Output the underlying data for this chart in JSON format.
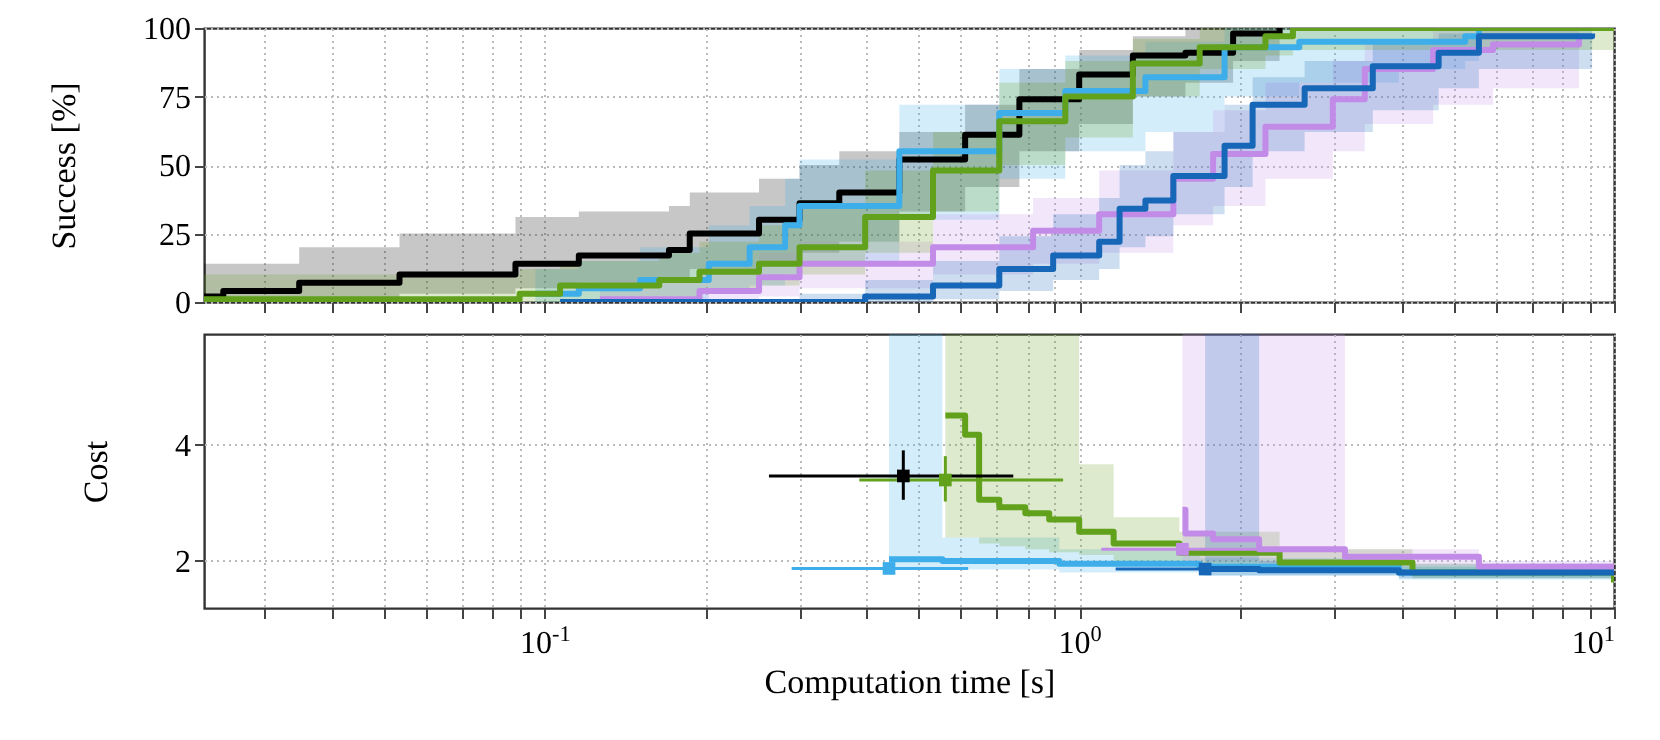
{
  "chart_data": [
    {
      "type": "step",
      "ylabel": "Success [%]",
      "xlim": [
        0.0231,
        10
      ],
      "ylim": [
        0,
        100
      ],
      "yticks": [
        0,
        25,
        50,
        75,
        100
      ],
      "log": "x",
      "grid": true,
      "tick_labels": "y",
      "xticks": [
        {
          "value": 0.03,
          "label": null
        },
        {
          "value": 0.04,
          "label": null
        },
        {
          "value": 0.05,
          "label": null
        },
        {
          "value": 0.06,
          "label": null
        },
        {
          "value": 0.07,
          "label": null
        },
        {
          "value": 0.08,
          "label": null
        },
        {
          "value": 0.09,
          "label": null
        },
        {
          "value": 0.1,
          "label": null
        },
        {
          "value": 0.2,
          "label": null
        },
        {
          "value": 0.3,
          "label": null
        },
        {
          "value": 0.4,
          "label": null
        },
        {
          "value": 0.5,
          "label": null
        },
        {
          "value": 0.6,
          "label": null
        },
        {
          "value": 0.7,
          "label": null
        },
        {
          "value": 0.8,
          "label": null
        },
        {
          "value": 0.9,
          "label": null
        },
        {
          "value": 1,
          "label": null
        },
        {
          "value": 2,
          "label": null
        },
        {
          "value": 3,
          "label": null
        },
        {
          "value": 4,
          "label": null
        },
        {
          "value": 5,
          "label": null
        },
        {
          "value": 6,
          "label": null
        },
        {
          "value": 7,
          "label": null
        },
        {
          "value": 8,
          "label": null
        },
        {
          "value": 9,
          "label": null
        },
        {
          "value": 10,
          "label": null
        }
      ],
      "series": [
        {
          "color": "#000000",
          "x": [
            0.0231,
            0.0251,
            0.0348,
            0.0536,
            0.0883,
            0.116,
            0.171,
            0.187,
            0.252,
            0.3,
            0.356,
            0.461,
            0.612,
            0.773,
            1,
            1.26,
            1.58,
            1.94,
            2.37
          ],
          "values": [
            2,
            4,
            7,
            10,
            14,
            17,
            19,
            25,
            30,
            36,
            40,
            52,
            61,
            74,
            83,
            90,
            91,
            98,
            100
          ],
          "lower": [
            0,
            0,
            0,
            3,
            5,
            7,
            9,
            12,
            15,
            18,
            22,
            33,
            42,
            55,
            65,
            75,
            80,
            88,
            92
          ],
          "upper": [
            14,
            14,
            20,
            25,
            31,
            33,
            35,
            40,
            45,
            50,
            55,
            62,
            72,
            85,
            92,
            97,
            100,
            100,
            100
          ]
        },
        {
          "color": "#3daee9",
          "x": [
            0.0962,
            0.116,
            0.151,
            0.203,
            0.242,
            0.282,
            0.3,
            0.461,
            0.709,
            0.942,
            1.33,
            1.87,
            2.58,
            3.96,
            5.27,
            5.59
          ],
          "values": [
            3,
            5,
            8,
            14,
            20,
            28,
            35,
            55,
            69,
            77,
            82,
            93,
            95,
            95,
            97,
            100
          ],
          "lower": [
            0,
            0,
            1,
            3,
            6,
            10,
            15,
            30,
            45,
            55,
            62,
            75,
            80,
            85,
            88,
            92
          ],
          "upper": [
            12,
            15,
            20,
            28,
            35,
            45,
            52,
            72,
            85,
            90,
            95,
            100,
            100,
            100,
            100,
            100
          ]
        },
        {
          "color": "#c38be8",
          "x": [
            0.127,
            0.195,
            0.252,
            0.3,
            0.533,
            0.82,
            1.09,
            1.5,
            1.78,
            2.23,
            2.98,
            3.42,
            4.59,
            5.94,
            8.6
          ],
          "values": [
            1,
            4,
            9,
            14,
            20,
            26,
            32,
            45,
            54,
            64,
            74,
            85,
            92,
            94,
            97
          ],
          "lower": [
            0,
            0,
            2,
            5,
            10,
            14,
            18,
            28,
            35,
            45,
            55,
            65,
            72,
            78,
            80
          ],
          "upper": [
            8,
            12,
            18,
            22,
            32,
            38,
            48,
            62,
            70,
            80,
            88,
            95,
            100,
            100,
            100
          ]
        },
        {
          "color": "#1767b8",
          "x": [
            0.107,
            0.3,
            0.398,
            0.533,
            0.709,
            0.894,
            1.09,
            1.19,
            1.33,
            1.5,
            1.87,
            2.11,
            2.64,
            3.54,
            4.7,
            5.59,
            9.1
          ],
          "values": [
            0,
            0,
            2,
            6,
            12,
            17,
            22,
            34,
            37,
            46,
            57,
            72,
            78,
            86,
            91,
            97,
            98
          ],
          "lower": [
            0,
            0,
            0,
            1,
            4,
            8,
            12,
            20,
            24,
            32,
            42,
            55,
            62,
            70,
            78,
            85,
            90
          ],
          "upper": [
            1,
            3,
            8,
            15,
            24,
            32,
            38,
            50,
            55,
            62,
            72,
            82,
            88,
            95,
            98,
            100,
            100
          ]
        },
        {
          "color": "#62a11c",
          "x": [
            0.0231,
            0.0899,
            0.107,
            0.164,
            0.195,
            0.252,
            0.3,
            0.398,
            0.533,
            0.709,
            0.942,
            1.26,
            1.68,
            2.23,
            2.51,
            10
          ],
          "values": [
            1,
            3,
            6,
            8,
            11,
            14,
            20,
            31,
            48,
            66,
            75,
            87,
            93,
            97,
            100,
            100
          ],
          "lower": [
            0,
            0,
            1,
            2,
            4,
            6,
            10,
            18,
            33,
            50,
            60,
            75,
            85,
            90,
            92,
            92
          ],
          "upper": [
            10,
            12,
            15,
            18,
            22,
            28,
            35,
            48,
            62,
            80,
            88,
            96,
            100,
            100,
            100,
            100
          ]
        }
      ]
    },
    {
      "type": "step",
      "ylabel": "Cost",
      "xlabel": "Computation time [s]",
      "xlim": [
        0.0231,
        10
      ],
      "ylim": [
        1.19,
        5.9
      ],
      "yticks": [
        2,
        4
      ],
      "log": "x",
      "grid": true,
      "xticks": [
        {
          "value": 0.03,
          "label": null
        },
        {
          "value": 0.04,
          "label": null
        },
        {
          "value": 0.05,
          "label": null
        },
        {
          "value": 0.06,
          "label": null
        },
        {
          "value": 0.07,
          "label": null
        },
        {
          "value": 0.08,
          "label": null
        },
        {
          "value": 0.09,
          "label": null
        },
        {
          "value": 0.1,
          "label": "10$^{-1}$"
        },
        {
          "value": 0.2,
          "label": null
        },
        {
          "value": 0.3,
          "label": null
        },
        {
          "value": 0.4,
          "label": null
        },
        {
          "value": 0.5,
          "label": null
        },
        {
          "value": 0.6,
          "label": null
        },
        {
          "value": 0.7,
          "label": null
        },
        {
          "value": 0.8,
          "label": null
        },
        {
          "value": 0.9,
          "label": null
        },
        {
          "value": 1,
          "label": "10$^{0}$"
        },
        {
          "value": 2,
          "label": null
        },
        {
          "value": 3,
          "label": null
        },
        {
          "value": 4,
          "label": null
        },
        {
          "value": 5,
          "label": null
        },
        {
          "value": 6,
          "label": null
        },
        {
          "value": 7,
          "label": null
        },
        {
          "value": 8,
          "label": null
        },
        {
          "value": 9,
          "label": null
        },
        {
          "value": 10,
          "label": "10$^{1}$"
        }
      ],
      "series": [
        {
          "color": "#3daee9",
          "x": [
            0.441,
            0.555,
            0.918,
            1.68,
            3.96,
            10
          ],
          "values": [
            2.03,
            2.0,
            1.95,
            1.9,
            1.8,
            1.72
          ],
          "lower": [
            1.85,
            1.85,
            1.8,
            1.75,
            1.68,
            1.62
          ],
          "upper": [
            5.9,
            2.4,
            2.2,
            2.05,
            1.95,
            1.85
          ]
        },
        {
          "color": "#62a11c",
          "x": [
            0.562,
            0.612,
            0.65,
            0.709,
            0.793,
            0.879,
            1,
            1.16,
            1.54,
            2.37,
            4.2,
            10
          ],
          "values": [
            4.5,
            4.17,
            3.05,
            2.92,
            2.82,
            2.71,
            2.5,
            2.3,
            2.14,
            1.97,
            1.8,
            1.63
          ],
          "lower": [
            2.4,
            2.4,
            2.3,
            2.25,
            2.2,
            2.15,
            2.1,
            2.0,
            1.95,
            1.85,
            1.7,
            1.55
          ],
          "upper": [
            5.9,
            5.9,
            5.9,
            5.9,
            5.9,
            5.9,
            3.66,
            2.75,
            2.5,
            2.2,
            1.95,
            1.75
          ]
        },
        {
          "color": "#c38be8",
          "x": [
            1.56,
            1.58,
            1.78,
            2.17,
            3.14,
            5.59,
            10
          ],
          "values": [
            2.88,
            2.47,
            2.37,
            2.2,
            2.07,
            1.9,
            1.85
          ],
          "lower": [
            2.0,
            2.0,
            2.0,
            1.95,
            1.9,
            1.8,
            1.75
          ],
          "upper": [
            5.9,
            5.9,
            5.9,
            5.9,
            2.2,
            2.0,
            1.95
          ]
        },
        {
          "color": "#1767b8",
          "x": [
            1.72,
            2.17,
            3.96,
            10
          ],
          "values": [
            1.86,
            1.84,
            1.8,
            1.75
          ],
          "lower": [
            1.75,
            1.75,
            1.7,
            1.68
          ],
          "upper": [
            5.9,
            2.0,
            1.9,
            1.85
          ]
        },
        {
          "type": "scatter",
          "marker": "square",
          "x": [
            0.469,
            0.562,
            0.441,
            1.72,
            1.56
          ],
          "values": [
            3.46,
            3.39,
            1.87,
            1.86,
            2.2
          ],
          "colors": [
            "#000000",
            "#62a11c",
            "#3daee9",
            "#1767b8",
            "#c38be8"
          ],
          "errors": [
            [
              3.05,
              3.9
            ],
            [
              3.02,
              3.8
            ],
            null,
            null,
            null
          ],
          "xerrors": [
            [
              0.263,
              0.753
            ],
            [
              0.388,
              0.933
            ],
            [
              0.29,
              0.62
            ],
            [
              1.17,
              2.37
            ],
            [
              1.1,
              2.4
            ]
          ]
        }
      ]
    }
  ]
}
